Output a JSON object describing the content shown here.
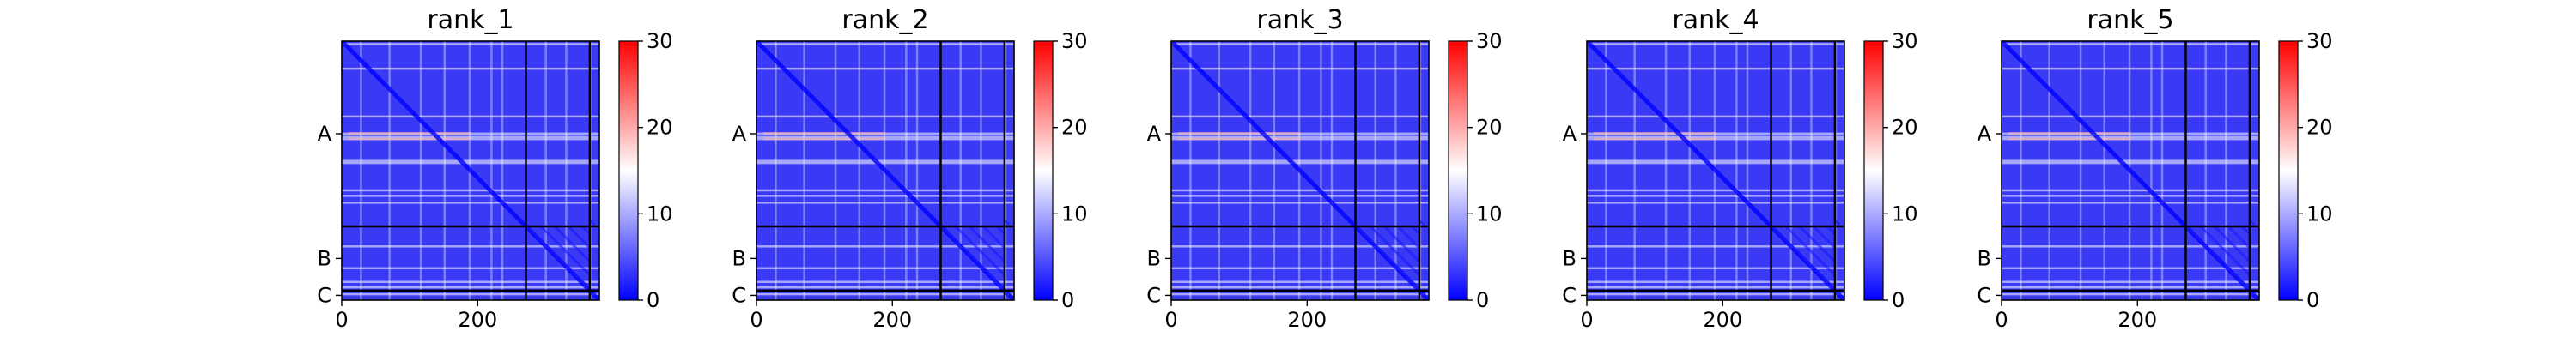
{
  "chart_data": [
    {
      "type": "heatmap",
      "title": "rank_1",
      "matrix_size": 379,
      "chain_labels": [
        "A",
        "B",
        "C"
      ],
      "chain_boundaries": [
        271,
        365
      ],
      "xticks": [
        0,
        200
      ],
      "colorbar": {
        "min": 0,
        "max": 30,
        "ticks": [
          0,
          10,
          20,
          30
        ],
        "colormap": "bwr"
      },
      "bright_rows": [
        4,
        40,
        110,
        135,
        140,
        143,
        175,
        178,
        218,
        226,
        236,
        300,
        332,
        352,
        360,
        370
      ],
      "bright_cols": [
        28,
        70,
        116,
        151,
        188,
        220,
        236,
        300,
        330,
        366
      ]
    },
    {
      "type": "heatmap",
      "title": "rank_2",
      "matrix_size": 379,
      "chain_labels": [
        "A",
        "B",
        "C"
      ],
      "chain_boundaries": [
        271,
        365
      ],
      "xticks": [
        0,
        200
      ],
      "colorbar": {
        "min": 0,
        "max": 30,
        "ticks": [
          0,
          10,
          20,
          30
        ],
        "colormap": "bwr"
      },
      "bright_rows": [
        4,
        40,
        110,
        135,
        140,
        143,
        175,
        178,
        218,
        226,
        236,
        300,
        332,
        352,
        360,
        370
      ],
      "bright_cols": [
        28,
        70,
        116,
        151,
        188,
        220,
        236,
        300,
        330,
        366
      ]
    },
    {
      "type": "heatmap",
      "title": "rank_3",
      "matrix_size": 379,
      "chain_labels": [
        "A",
        "B",
        "C"
      ],
      "chain_boundaries": [
        271,
        365
      ],
      "xticks": [
        0,
        200
      ],
      "colorbar": {
        "min": 0,
        "max": 30,
        "ticks": [
          0,
          10,
          20,
          30
        ],
        "colormap": "bwr"
      },
      "bright_rows": [
        4,
        40,
        110,
        135,
        140,
        143,
        175,
        178,
        218,
        226,
        236,
        300,
        332,
        352,
        360,
        370
      ],
      "bright_cols": [
        28,
        70,
        116,
        151,
        188,
        220,
        236,
        300,
        330,
        366
      ]
    },
    {
      "type": "heatmap",
      "title": "rank_4",
      "matrix_size": 379,
      "chain_labels": [
        "A",
        "B",
        "C"
      ],
      "chain_boundaries": [
        271,
        365
      ],
      "xticks": [
        0,
        200
      ],
      "colorbar": {
        "min": 0,
        "max": 30,
        "ticks": [
          0,
          10,
          20,
          30
        ],
        "colormap": "bwr"
      },
      "bright_rows": [
        4,
        40,
        110,
        135,
        140,
        143,
        175,
        178,
        218,
        226,
        236,
        300,
        332,
        352,
        360,
        370
      ],
      "bright_cols": [
        28,
        70,
        116,
        151,
        188,
        220,
        236,
        300,
        330,
        366
      ]
    },
    {
      "type": "heatmap",
      "title": "rank_5",
      "matrix_size": 379,
      "chain_labels": [
        "A",
        "B",
        "C"
      ],
      "chain_boundaries": [
        271,
        365
      ],
      "xticks": [
        0,
        200
      ],
      "colorbar": {
        "min": 0,
        "max": 30,
        "ticks": [
          0,
          10,
          20,
          30
        ],
        "colormap": "bwr"
      },
      "bright_rows": [
        4,
        40,
        110,
        135,
        140,
        143,
        175,
        178,
        218,
        226,
        236,
        300,
        332,
        352,
        360,
        370
      ],
      "bright_cols": [
        28,
        70,
        116,
        151,
        188,
        220,
        236,
        300,
        330,
        366
      ]
    }
  ],
  "colors": {
    "low": "#0000ff",
    "mid": "#ffffff",
    "high": "#ff0000",
    "base_fill": "#3a3af6",
    "line": "#000000"
  }
}
